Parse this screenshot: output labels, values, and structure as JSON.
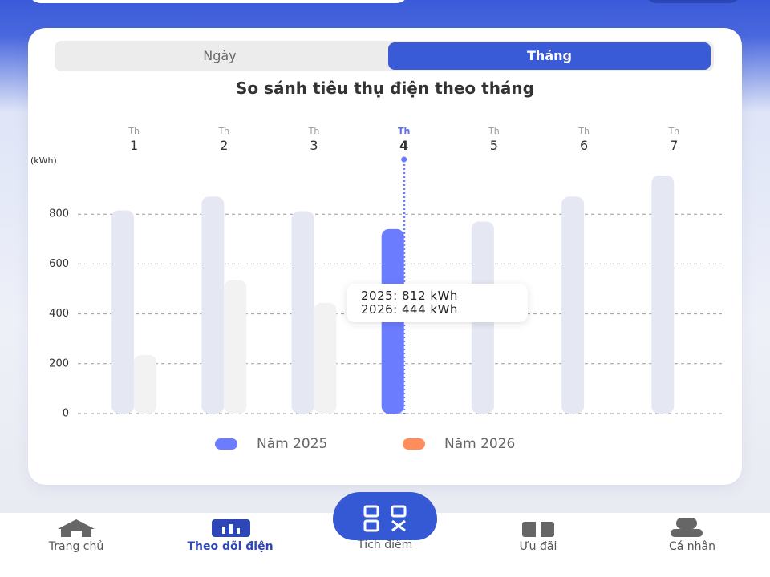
{
  "tabs": {
    "items": [
      "Ngày",
      "Tháng"
    ],
    "active": 1
  },
  "chart_data": {
    "type": "bar",
    "title": "So sánh tiêu thụ điện theo tháng",
    "y_label": "(kWh)",
    "categories": [
      "Th\n1",
      "Th\n2",
      "Th\n3",
      "Th\n4",
      "Th\n5",
      "Th\n6",
      "Th\n7"
    ],
    "highlight": 3,
    "series": [
      {
        "name": "Năm 2025",
        "color": "#6b7cff",
        "muted_color": "#e5e8f3",
        "values": [
          815,
          870,
          812,
          740,
          770,
          870,
          955
        ]
      },
      {
        "name": "Năm 2026",
        "color": "#ff8c5a",
        "muted_color": "#f2f2f2",
        "values": [
          235,
          535,
          444,
          null,
          null,
          null,
          null
        ]
      }
    ],
    "ylim": [
      0,
      1000
    ],
    "yticks": [
      0,
      200,
      400,
      600,
      800
    ],
    "grid": true,
    "tooltip": {
      "lines": [
        "2025: 812 kWh",
        "2026: 444 kWh"
      ]
    }
  },
  "nav": {
    "items": [
      "Trang chủ",
      "Theo dõi điện",
      "Tích điểm",
      "Ưu đãi",
      "Cá nhân"
    ],
    "active": 1
  }
}
